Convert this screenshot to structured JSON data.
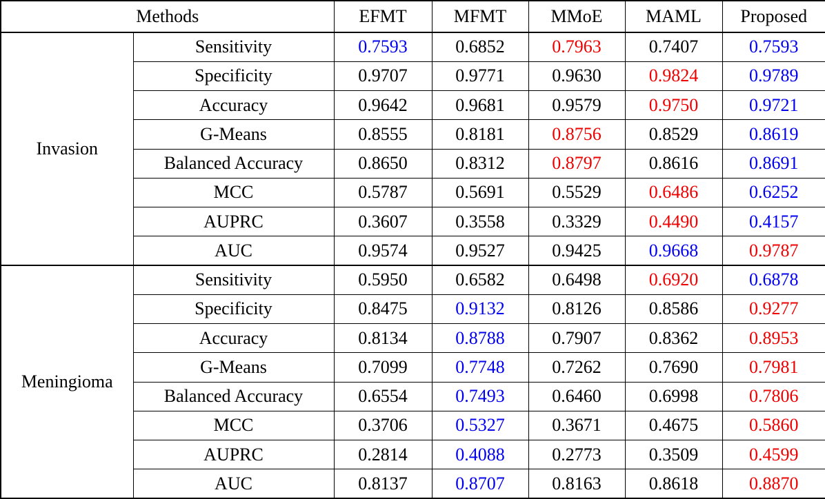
{
  "table": {
    "methods_label": "Methods",
    "columns": [
      "EFMT",
      "MFMT",
      "MMoE",
      "MAML",
      "Proposed"
    ],
    "value_colors": {
      "red": "#ee0000",
      "blue": "#0000ee",
      "black": "#000000"
    },
    "groups": [
      {
        "name": "Invasion",
        "rows": [
          {
            "metric": "Sensitivity",
            "values": [
              "0.7593",
              "0.6852",
              "0.7963",
              "0.7407",
              "0.7593"
            ],
            "colors": [
              "blue",
              "black",
              "red",
              "black",
              "blue"
            ]
          },
          {
            "metric": "Specificity",
            "values": [
              "0.9707",
              "0.9771",
              "0.9630",
              "0.9824",
              "0.9789"
            ],
            "colors": [
              "black",
              "black",
              "black",
              "red",
              "blue"
            ]
          },
          {
            "metric": "Accuracy",
            "values": [
              "0.9642",
              "0.9681",
              "0.9579",
              "0.9750",
              "0.9721"
            ],
            "colors": [
              "black",
              "black",
              "black",
              "red",
              "blue"
            ]
          },
          {
            "metric": "G-Means",
            "values": [
              "0.8555",
              "0.8181",
              "0.8756",
              "0.8529",
              "0.8619"
            ],
            "colors": [
              "black",
              "black",
              "red",
              "black",
              "blue"
            ]
          },
          {
            "metric": "Balanced Accuracy",
            "values": [
              "0.8650",
              "0.8312",
              "0.8797",
              "0.8616",
              "0.8691"
            ],
            "colors": [
              "black",
              "black",
              "red",
              "black",
              "blue"
            ]
          },
          {
            "metric": "MCC",
            "values": [
              "0.5787",
              "0.5691",
              "0.5529",
              "0.6486",
              "0.6252"
            ],
            "colors": [
              "black",
              "black",
              "black",
              "red",
              "blue"
            ]
          },
          {
            "metric": "AUPRC",
            "values": [
              "0.3607",
              "0.3558",
              "0.3329",
              "0.4490",
              "0.4157"
            ],
            "colors": [
              "black",
              "black",
              "black",
              "red",
              "blue"
            ]
          },
          {
            "metric": "AUC",
            "values": [
              "0.9574",
              "0.9527",
              "0.9425",
              "0.9668",
              "0.9787"
            ],
            "colors": [
              "black",
              "black",
              "black",
              "blue",
              "red"
            ]
          }
        ]
      },
      {
        "name": "Meningioma",
        "rows": [
          {
            "metric": "Sensitivity",
            "values": [
              "0.5950",
              "0.6582",
              "0.6498",
              "0.6920",
              "0.6878"
            ],
            "colors": [
              "black",
              "black",
              "black",
              "red",
              "blue"
            ]
          },
          {
            "metric": "Specificity",
            "values": [
              "0.8475",
              "0.9132",
              "0.8126",
              "0.8586",
              "0.9277"
            ],
            "colors": [
              "black",
              "blue",
              "black",
              "black",
              "red"
            ]
          },
          {
            "metric": "Accuracy",
            "values": [
              "0.8134",
              "0.8788",
              "0.7907",
              "0.8362",
              "0.8953"
            ],
            "colors": [
              "black",
              "blue",
              "black",
              "black",
              "red"
            ]
          },
          {
            "metric": "G-Means",
            "values": [
              "0.7099",
              "0.7748",
              "0.7262",
              "0.7690",
              "0.7981"
            ],
            "colors": [
              "black",
              "blue",
              "black",
              "black",
              "red"
            ]
          },
          {
            "metric": "Balanced Accuracy",
            "values": [
              "0.6554",
              "0.7493",
              "0.6460",
              "0.6998",
              "0.7806"
            ],
            "colors": [
              "black",
              "blue",
              "black",
              "black",
              "red"
            ]
          },
          {
            "metric": "MCC",
            "values": [
              "0.3706",
              "0.5327",
              "0.3671",
              "0.4675",
              "0.5860"
            ],
            "colors": [
              "black",
              "blue",
              "black",
              "black",
              "red"
            ]
          },
          {
            "metric": "AUPRC",
            "values": [
              "0.2814",
              "0.4088",
              "0.2773",
              "0.3509",
              "0.4599"
            ],
            "colors": [
              "black",
              "blue",
              "black",
              "black",
              "red"
            ]
          },
          {
            "metric": "AUC",
            "values": [
              "0.8137",
              "0.8707",
              "0.8163",
              "0.8618",
              "0.8870"
            ],
            "colors": [
              "black",
              "blue",
              "black",
              "black",
              "red"
            ]
          }
        ]
      }
    ]
  }
}
